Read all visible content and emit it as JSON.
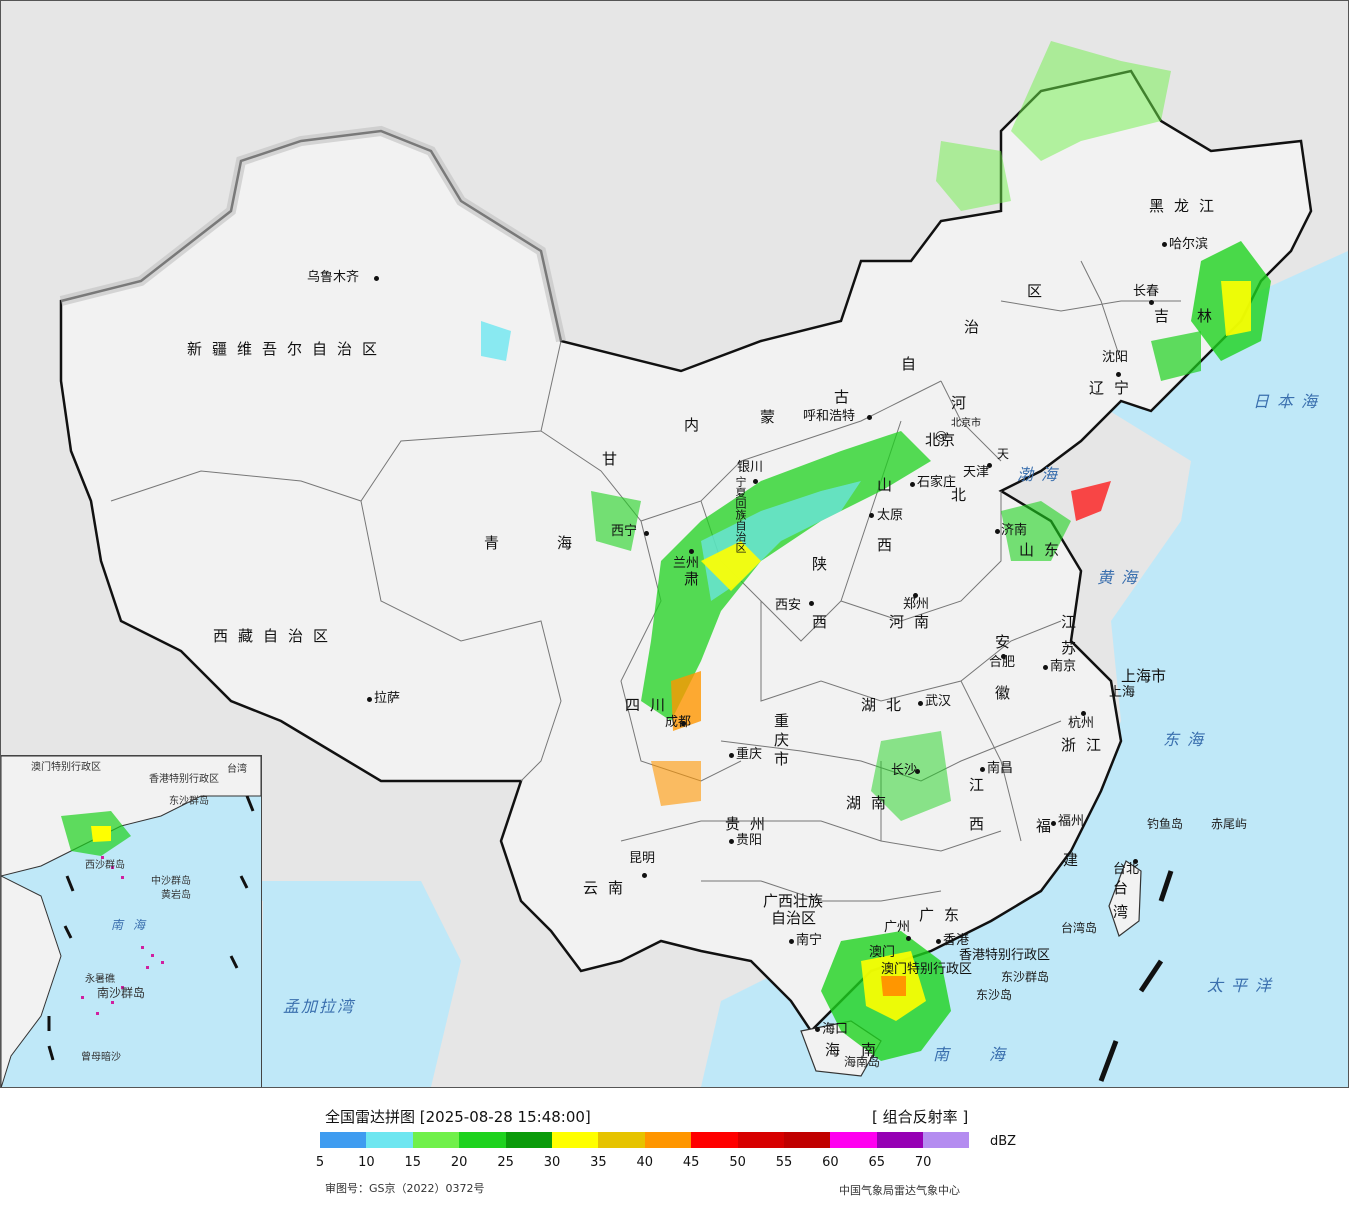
{
  "legend": {
    "title": "全国雷达拼图 [2025-08-28 15:48:00]",
    "product": "[ 组合反射率 ]",
    "unit": "dBZ",
    "review_no": "审图号：GS京（2022）0372号",
    "agency": "中国气象局雷达气象中心",
    "ticks": [
      "5",
      "10",
      "15",
      "20",
      "25",
      "30",
      "35",
      "40",
      "45",
      "50",
      "55",
      "60",
      "65",
      "70"
    ],
    "colors": [
      "#3f9cf0",
      "#6ee6f0",
      "#70f04a",
      "#1ed21e",
      "#0a9a0a",
      "#ffff00",
      "#e6c300",
      "#ff9600",
      "#ff0000",
      "#d70000",
      "#c00000",
      "#ff00f0",
      "#9600b4",
      "#b48cf0"
    ]
  },
  "provinces": [
    {
      "id": "xinjiang",
      "text": "新疆维吾尔自治区"
    },
    {
      "id": "xizang",
      "text": "西藏自治区"
    },
    {
      "id": "qinghai-qing",
      "text": "青"
    },
    {
      "id": "qinghai-hai",
      "text": "海"
    },
    {
      "id": "gansu-gan",
      "text": "甘"
    },
    {
      "id": "gansu-su",
      "text": "肃"
    },
    {
      "id": "neimenggu-nei",
      "text": "内"
    },
    {
      "id": "neimenggu-meng",
      "text": "蒙"
    },
    {
      "id": "neimenggu-gu",
      "text": "古"
    },
    {
      "id": "neimenggu-zi",
      "text": "自"
    },
    {
      "id": "neimenggu-zhi",
      "text": "治"
    },
    {
      "id": "neimenggu-qu",
      "text": "区"
    },
    {
      "id": "heilongjiang",
      "text": "黑龙江"
    },
    {
      "id": "jilin-ji",
      "text": "吉"
    },
    {
      "id": "jilin-lin",
      "text": "林"
    },
    {
      "id": "liaoning",
      "text": "辽宁"
    },
    {
      "id": "hebei-he",
      "text": "河"
    },
    {
      "id": "hebei-bei",
      "text": "北"
    },
    {
      "id": "shanxi-shan",
      "text": "山"
    },
    {
      "id": "shanxi-xi",
      "text": "西"
    },
    {
      "id": "shaanxi-shan",
      "text": "陕"
    },
    {
      "id": "shaanxi-xi",
      "text": "西"
    },
    {
      "id": "shandong",
      "text": "山东"
    },
    {
      "id": "henan",
      "text": "河南"
    },
    {
      "id": "jiangsu-jiang",
      "text": "江"
    },
    {
      "id": "jiangsu-su",
      "text": "苏"
    },
    {
      "id": "anhui-an",
      "text": "安"
    },
    {
      "id": "anhui-hui",
      "text": "徽"
    },
    {
      "id": "shanghai",
      "text": "上海市"
    },
    {
      "id": "hubei",
      "text": "湖北"
    },
    {
      "id": "sichuan",
      "text": "四川"
    },
    {
      "id": "chongqing",
      "text": "重庆市"
    },
    {
      "id": "zhejiang",
      "text": "浙江"
    },
    {
      "id": "hunan",
      "text": "湖南"
    },
    {
      "id": "jiangxi-jiang",
      "text": "江"
    },
    {
      "id": "jiangxi-xi",
      "text": "西"
    },
    {
      "id": "guizhou",
      "text": "贵州"
    },
    {
      "id": "yunnan",
      "text": "云南"
    },
    {
      "id": "guangxi-1",
      "text": "广西壮族"
    },
    {
      "id": "guangxi-2",
      "text": "自治区"
    },
    {
      "id": "guangdong",
      "text": "广东"
    },
    {
      "id": "fujian-fu",
      "text": "福"
    },
    {
      "id": "fujian-jian",
      "text": "建"
    },
    {
      "id": "taiwan-tai",
      "text": "台"
    },
    {
      "id": "taiwan-wan",
      "text": "湾"
    },
    {
      "id": "hainan-hai",
      "text": "海"
    },
    {
      "id": "hainan-nan",
      "text": "南"
    },
    {
      "id": "hk",
      "text": "香港特别行政区"
    },
    {
      "id": "macau",
      "text": "澳门特别行政区"
    },
    {
      "id": "ningxia",
      "text": "宁夏回族自治区"
    },
    {
      "id": "tianjin",
      "text": "天"
    },
    {
      "id": "beijing-city",
      "text": "北京市"
    }
  ],
  "cities": [
    {
      "id": "urumqi",
      "text": "乌鲁木齐"
    },
    {
      "id": "lhasa",
      "text": "拉萨"
    },
    {
      "id": "xining",
      "text": "西宁"
    },
    {
      "id": "yinchuan",
      "text": "银川"
    },
    {
      "id": "lanzhou",
      "text": "兰州"
    },
    {
      "id": "hohhot",
      "text": "呼和浩特"
    },
    {
      "id": "beijing",
      "text": "北京"
    },
    {
      "id": "tianjin-city",
      "text": "天津"
    },
    {
      "id": "shijiazhuang",
      "text": "石家庄"
    },
    {
      "id": "taiyuan",
      "text": "太原"
    },
    {
      "id": "xian",
      "text": "西安"
    },
    {
      "id": "zhengzhou",
      "text": "郑州"
    },
    {
      "id": "jinan",
      "text": "济南"
    },
    {
      "id": "harbin",
      "text": "哈尔滨"
    },
    {
      "id": "changchun",
      "text": "长春"
    },
    {
      "id": "shenyang",
      "text": "沈阳"
    },
    {
      "id": "nanjing",
      "text": "南京"
    },
    {
      "id": "hefei",
      "text": "合肥"
    },
    {
      "id": "shanghai-city",
      "text": "上海"
    },
    {
      "id": "hangzhou",
      "text": "杭州"
    },
    {
      "id": "wuhan",
      "text": "武汉"
    },
    {
      "id": "chengdu",
      "text": "成都"
    },
    {
      "id": "chongqing-city",
      "text": "重庆"
    },
    {
      "id": "changsha",
      "text": "长沙"
    },
    {
      "id": "nanchang",
      "text": "南昌"
    },
    {
      "id": "guiyang",
      "text": "贵阳"
    },
    {
      "id": "kunming",
      "text": "昆明"
    },
    {
      "id": "nanning",
      "text": "南宁"
    },
    {
      "id": "guangzhou",
      "text": "广州"
    },
    {
      "id": "hongkong",
      "text": "香港"
    },
    {
      "id": "macao",
      "text": "澳门"
    },
    {
      "id": "fuzhou",
      "text": "福州"
    },
    {
      "id": "taipei",
      "text": "台北"
    },
    {
      "id": "haikou",
      "text": "海口"
    }
  ],
  "seas": [
    {
      "id": "sea-japan",
      "text": "日本海"
    },
    {
      "id": "sea-bohai",
      "text": "渤海"
    },
    {
      "id": "sea-yellow",
      "text": "黄海"
    },
    {
      "id": "sea-east",
      "text": "东海"
    },
    {
      "id": "sea-pacific",
      "text": "太平洋"
    },
    {
      "id": "sea-south",
      "text": "南海"
    },
    {
      "id": "sea-bengal",
      "text": "孟加拉湾"
    }
  ],
  "islands": [
    {
      "id": "diaoyu",
      "text": "钓鱼岛"
    },
    {
      "id": "chiwei",
      "text": "赤尾屿"
    },
    {
      "id": "taiwan-island",
      "text": "台湾岛"
    },
    {
      "id": "dongsha-group",
      "text": "东沙群岛"
    },
    {
      "id": "dongsha-island",
      "text": "东沙岛"
    },
    {
      "id": "hainan-island",
      "text": "海南岛"
    }
  ],
  "inset": {
    "labels": [
      {
        "id": "inset-macau",
        "text": "澳门特别行政区"
      },
      {
        "id": "inset-hk",
        "text": "香港特别行政区"
      },
      {
        "id": "inset-dongsha",
        "text": "东沙群岛"
      },
      {
        "id": "inset-xisha",
        "text": "西沙群岛"
      },
      {
        "id": "inset-zhongsha",
        "text": "中沙群岛"
      },
      {
        "id": "inset-huangyan",
        "text": "黄岩岛"
      },
      {
        "id": "inset-yongshu",
        "text": "永暑礁"
      },
      {
        "id": "inset-nansha",
        "text": "南沙群岛"
      },
      {
        "id": "inset-zengmu",
        "text": "曾母暗沙"
      },
      {
        "id": "inset-taiwan",
        "text": "台湾"
      }
    ],
    "sea": "南海"
  }
}
